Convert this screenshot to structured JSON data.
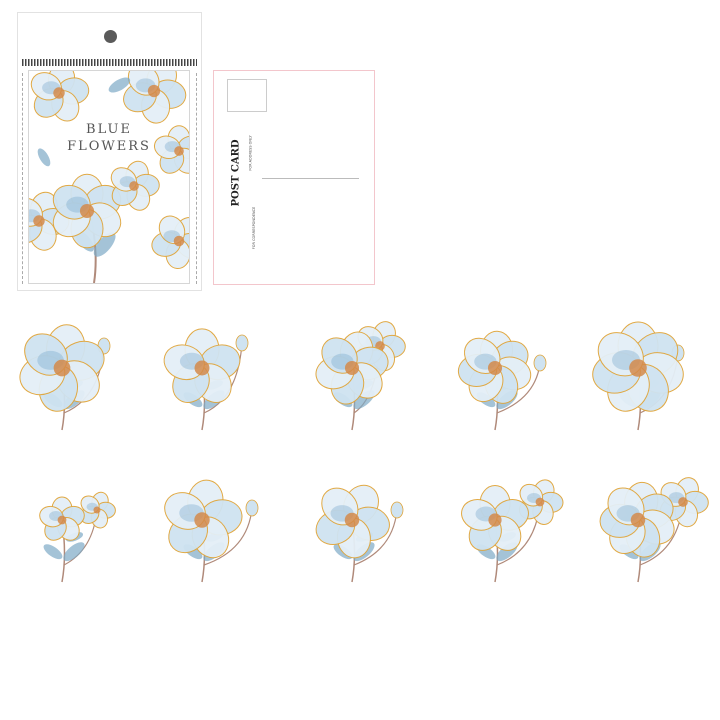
{
  "package": {
    "title_line1": "BLUE",
    "title_line2": "FLOWERS"
  },
  "postcard": {
    "title": "POST CARD",
    "address_label": "FOR ADDRESS ONLY",
    "correspondence_label": "FOR CORRESPONDENCE"
  },
  "colors": {
    "petal": "#cfe3f1",
    "petal_deep": "#6fa3c8",
    "outline": "#e0a53a",
    "stem": "#b08a7a",
    "leaf": "#7ea9c6",
    "center": "#d48a4a"
  }
}
